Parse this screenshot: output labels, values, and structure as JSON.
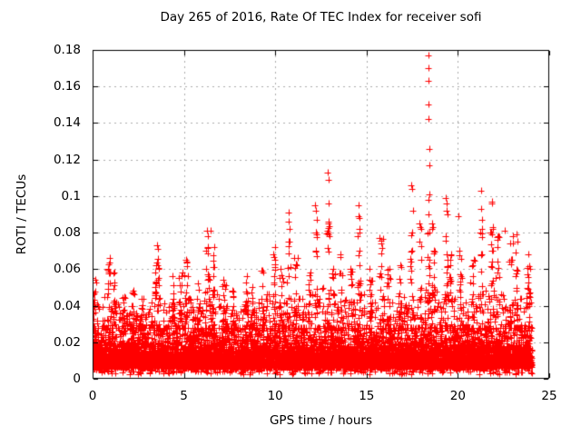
{
  "chart_data": {
    "type": "scatter",
    "title": "Day 265 of 2016, Rate Of TEC Index for receiver sofi",
    "xlabel": "GPS time / hours",
    "ylabel": "ROTI / TECUs",
    "xlim": [
      0,
      25
    ],
    "ylim": [
      0,
      0.18
    ],
    "xtick_values": [
      0,
      5,
      10,
      15,
      20,
      25
    ],
    "xtick_labels": [
      "0",
      "5",
      "10",
      "15",
      "20",
      "25"
    ],
    "ytick_values": [
      0,
      0.02,
      0.04,
      0.06,
      0.08,
      0.1,
      0.12,
      0.14,
      0.16,
      0.18
    ],
    "ytick_labels": [
      "0",
      "0.02",
      "0.04",
      "0.06",
      "0.08",
      "0.1",
      "0.12",
      "0.14",
      "0.16",
      "0.18"
    ],
    "grid": true,
    "legend": "none",
    "marker": "plus",
    "marker_size_px": 7,
    "marker_color": "#ff0000",
    "grid_color": "#ababab",
    "axis_color": "#000000",
    "background_color": "#ffffff",
    "x_data_range": [
      0.02,
      24.05
    ],
    "base_band": {
      "core_lo": 0.006,
      "core_hi": 0.028,
      "tail_lo": 0.002,
      "note": "dense solid band of points; sparse fringe down to ~0.003"
    },
    "bins_format": [
      "x_start_hour",
      "x_end_hour",
      "dense_envelope_top_TECU",
      "bin_max_TECU",
      "spike_center_hour"
    ],
    "bins": [
      [
        0.0,
        0.5,
        0.042,
        0.055,
        0.1
      ],
      [
        0.5,
        1.0,
        0.045,
        0.066,
        0.9
      ],
      [
        1.0,
        1.5,
        0.042,
        0.058,
        1.2
      ],
      [
        1.5,
        2.0,
        0.035,
        0.045,
        1.7
      ],
      [
        2.0,
        2.5,
        0.036,
        0.048,
        2.2
      ],
      [
        2.5,
        3.0,
        0.034,
        0.044,
        2.7
      ],
      [
        3.0,
        3.5,
        0.042,
        0.062,
        3.45
      ],
      [
        3.5,
        4.0,
        0.046,
        0.073,
        3.6
      ],
      [
        4.0,
        4.5,
        0.04,
        0.056,
        4.4
      ],
      [
        4.5,
        5.0,
        0.04,
        0.058,
        4.8
      ],
      [
        5.0,
        5.5,
        0.044,
        0.065,
        5.15
      ],
      [
        5.5,
        6.0,
        0.038,
        0.052,
        5.8
      ],
      [
        6.0,
        6.5,
        0.05,
        0.078,
        6.3
      ],
      [
        6.5,
        7.0,
        0.046,
        0.072,
        6.6
      ],
      [
        7.0,
        7.5,
        0.04,
        0.054,
        7.2
      ],
      [
        7.5,
        8.0,
        0.036,
        0.048,
        7.7
      ],
      [
        8.0,
        8.5,
        0.04,
        0.056,
        8.45
      ],
      [
        8.5,
        9.0,
        0.038,
        0.05,
        8.7
      ],
      [
        9.0,
        9.5,
        0.042,
        0.059,
        9.3
      ],
      [
        9.5,
        10.0,
        0.046,
        0.072,
        9.95
      ],
      [
        10.0,
        10.5,
        0.042,
        0.06,
        10.3
      ],
      [
        10.5,
        11.0,
        0.046,
        0.075,
        10.75
      ],
      [
        11.0,
        11.5,
        0.044,
        0.066,
        11.1
      ],
      [
        11.5,
        12.0,
        0.04,
        0.058,
        11.9
      ],
      [
        12.0,
        12.5,
        0.046,
        0.08,
        12.25
      ],
      [
        12.5,
        13.0,
        0.05,
        0.085,
        12.9
      ],
      [
        13.0,
        13.5,
        0.042,
        0.06,
        13.2
      ],
      [
        13.5,
        14.0,
        0.044,
        0.068,
        13.6
      ],
      [
        14.0,
        14.5,
        0.042,
        0.06,
        14.2
      ],
      [
        14.5,
        15.0,
        0.046,
        0.078,
        14.6
      ],
      [
        15.0,
        15.5,
        0.042,
        0.06,
        15.2
      ],
      [
        15.5,
        16.0,
        0.046,
        0.077,
        15.8
      ],
      [
        16.0,
        16.5,
        0.042,
        0.06,
        16.2
      ],
      [
        16.5,
        17.0,
        0.042,
        0.062,
        16.8
      ],
      [
        17.0,
        17.5,
        0.046,
        0.08,
        17.45
      ],
      [
        17.5,
        18.0,
        0.046,
        0.075,
        17.95
      ],
      [
        18.0,
        18.5,
        0.05,
        0.08,
        18.4
      ],
      [
        18.5,
        19.0,
        0.05,
        0.07,
        18.7
      ],
      [
        19.0,
        19.5,
        0.046,
        0.078,
        19.4
      ],
      [
        19.5,
        20.0,
        0.044,
        0.068,
        19.6
      ],
      [
        20.0,
        20.5,
        0.042,
        0.07,
        20.1
      ],
      [
        20.5,
        21.0,
        0.042,
        0.065,
        20.8
      ],
      [
        21.0,
        21.5,
        0.046,
        0.08,
        21.3
      ],
      [
        21.5,
        22.0,
        0.048,
        0.08,
        21.85
      ],
      [
        22.0,
        22.5,
        0.046,
        0.078,
        22.2
      ],
      [
        22.5,
        23.0,
        0.044,
        0.078,
        22.9
      ],
      [
        23.0,
        23.5,
        0.044,
        0.075,
        23.2
      ],
      [
        23.5,
        24.05,
        0.05,
        0.068,
        23.9
      ]
    ],
    "outliers": [
      [
        6.25,
        0.081
      ],
      [
        6.45,
        0.081
      ],
      [
        10.72,
        0.091
      ],
      [
        10.75,
        0.086
      ],
      [
        10.78,
        0.082
      ],
      [
        12.18,
        0.095
      ],
      [
        12.22,
        0.092
      ],
      [
        12.27,
        0.087
      ],
      [
        12.88,
        0.113
      ],
      [
        12.9,
        0.109
      ],
      [
        12.92,
        0.096
      ],
      [
        12.9,
        0.086
      ],
      [
        12.93,
        0.079
      ],
      [
        14.55,
        0.095
      ],
      [
        14.58,
        0.089
      ],
      [
        14.6,
        0.088
      ],
      [
        14.62,
        0.082
      ],
      [
        14.6,
        0.08
      ],
      [
        17.45,
        0.106
      ],
      [
        17.48,
        0.104
      ],
      [
        17.55,
        0.092
      ],
      [
        17.9,
        0.085
      ],
      [
        17.95,
        0.083
      ],
      [
        18.0,
        0.082
      ],
      [
        18.4,
        0.177
      ],
      [
        18.4,
        0.17
      ],
      [
        18.4,
        0.163
      ],
      [
        18.41,
        0.15
      ],
      [
        18.41,
        0.142
      ],
      [
        18.42,
        0.126
      ],
      [
        18.42,
        0.117
      ],
      [
        18.43,
        0.101
      ],
      [
        18.38,
        0.098
      ],
      [
        18.4,
        0.09
      ],
      [
        18.6,
        0.085
      ],
      [
        18.62,
        0.083
      ],
      [
        18.58,
        0.082
      ],
      [
        19.35,
        0.099
      ],
      [
        19.38,
        0.096
      ],
      [
        19.4,
        0.092
      ],
      [
        19.42,
        0.09
      ],
      [
        20.02,
        0.089
      ],
      [
        21.25,
        0.103
      ],
      [
        21.28,
        0.093
      ],
      [
        21.3,
        0.087
      ],
      [
        21.33,
        0.082
      ],
      [
        21.85,
        0.097
      ],
      [
        21.87,
        0.096
      ],
      [
        21.9,
        0.083
      ],
      [
        21.92,
        0.082
      ],
      [
        22.55,
        0.081
      ],
      [
        23.2,
        0.079
      ]
    ]
  }
}
